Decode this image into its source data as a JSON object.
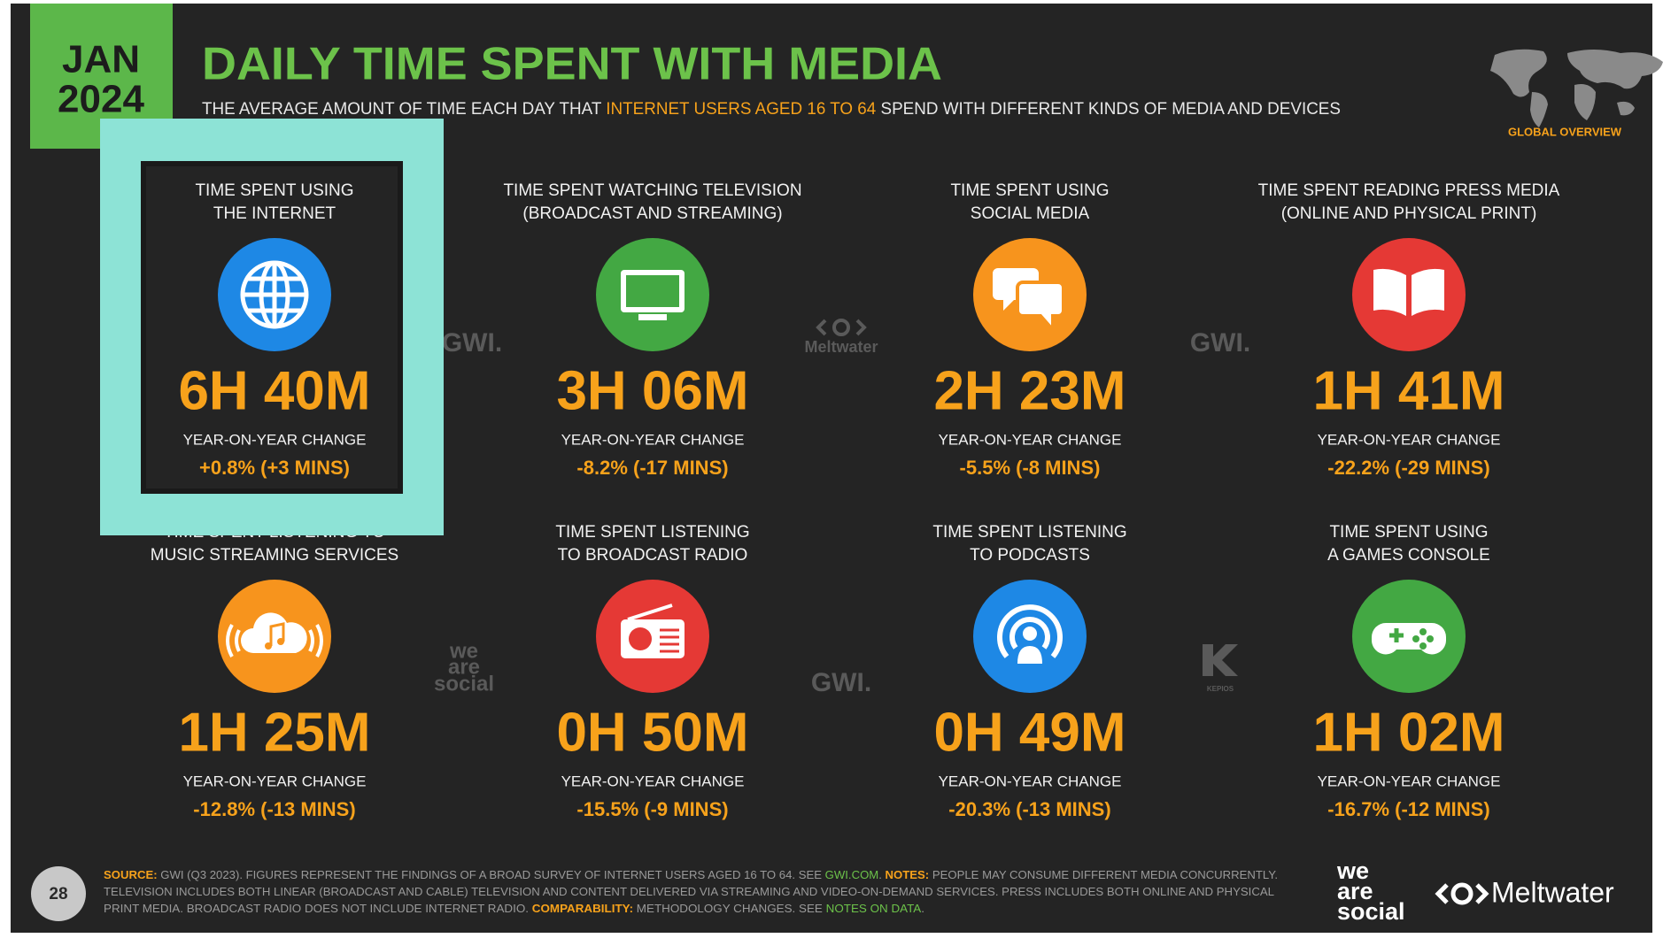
{
  "header": {
    "month": "JAN",
    "year": "2024",
    "title": "DAILY TIME SPENT WITH MEDIA",
    "subtitle": [
      "THE AVERAGE AMOUNT OF TIME EACH DAY THAT ",
      "INTERNET USERS AGED 16 TO 64",
      " SPEND WITH DIFFERENT KINDS OF MEDIA AND DEVICES"
    ],
    "badge": "GLOBAL OVERVIEW"
  },
  "cards": [
    {
      "label": [
        "TIME SPENT USING",
        "THE INTERNET"
      ],
      "value": "6H 40M",
      "change_label": "YEAR-ON-YEAR CHANGE",
      "change": "+0.8% (+3 MINS)",
      "color": "#1e88e5"
    },
    {
      "label": [
        "TIME SPENT WATCHING TELEVISION",
        "(BROADCAST AND STREAMING)"
      ],
      "value": "3H 06M",
      "change_label": "YEAR-ON-YEAR CHANGE",
      "change": "-8.2% (-17 MINS)",
      "color": "#43a843"
    },
    {
      "label": [
        "TIME SPENT USING",
        "SOCIAL MEDIA"
      ],
      "value": "2H 23M",
      "change_label": "YEAR-ON-YEAR CHANGE",
      "change": "-5.5% (-8 MINS)",
      "color": "#f7941d"
    },
    {
      "label": [
        "TIME SPENT READING PRESS MEDIA",
        "(ONLINE AND PHYSICAL PRINT)"
      ],
      "value": "1H 41M",
      "change_label": "YEAR-ON-YEAR CHANGE",
      "change": "-22.2% (-29 MINS)",
      "color": "#e53935"
    },
    {
      "label": [
        "TIME SPENT LISTENING TO",
        "MUSIC STREAMING SERVICES"
      ],
      "value": "1H 25M",
      "change_label": "YEAR-ON-YEAR CHANGE",
      "change": "-12.8% (-13 MINS)",
      "color": "#f7941d"
    },
    {
      "label": [
        "TIME SPENT LISTENING",
        "TO BROADCAST RADIO"
      ],
      "value": "0H 50M",
      "change_label": "YEAR-ON-YEAR CHANGE",
      "change": "-15.5% (-9 MINS)",
      "color": "#e53935"
    },
    {
      "label": [
        "TIME SPENT LISTENING",
        "TO PODCASTS"
      ],
      "value": "0H 49M",
      "change_label": "YEAR-ON-YEAR CHANGE",
      "change": "-20.3% (-13 MINS)",
      "color": "#1e88e5"
    },
    {
      "label": [
        "TIME SPENT USING",
        "A GAMES CONSOLE"
      ],
      "value": "1H 02M",
      "change_label": "YEAR-ON-YEAR CHANGE",
      "change": "-16.7% (-12 MINS)",
      "color": "#43a843"
    }
  ],
  "watermarks": [
    "GWI.",
    "Meltwater",
    "GWI.",
    "we",
    "are",
    "social",
    "GWI.",
    "KEPIOS"
  ],
  "footer": {
    "page": "28",
    "lines": [
      [
        {
          "text": "SOURCE:",
          "color": "#f7a21b"
        },
        {
          "text": " GWI (Q3 2023). FIGURES REPRESENT THE FINDINGS OF A BROAD SURVEY OF INTERNET USERS AGED 16 TO 64. SEE ",
          "color": "#9a9a9a"
        },
        {
          "text": "GWI.COM",
          "color": "#6cc24a"
        },
        {
          "text": ". ",
          "color": "#9a9a9a"
        },
        {
          "text": "NOTES:",
          "color": "#f7a21b"
        },
        {
          "text": " PEOPLE MAY CONSUME DIFFERENT MEDIA CONCURRENTLY.",
          "color": "#9a9a9a"
        }
      ],
      [
        {
          "text": "TELEVISION INCLUDES BOTH LINEAR (BROADCAST AND CABLE) TELEVISION AND CONTENT DELIVERED VIA STREAMING AND VIDEO-ON-DEMAND SERVICES. PRESS INCLUDES BOTH ONLINE AND PHYSICAL",
          "color": "#9a9a9a"
        }
      ],
      [
        {
          "text": "PRINT MEDIA. BROADCAST RADIO DOES NOT INCLUDE INTERNET RADIO. ",
          "color": "#9a9a9a"
        },
        {
          "text": "COMPARABILITY:",
          "color": "#f7a21b"
        },
        {
          "text": " METHODOLOGY CHANGES. SEE ",
          "color": "#9a9a9a"
        },
        {
          "text": "NOTES ON DATA",
          "color": "#6cc24a"
        },
        {
          "text": ".",
          "color": "#9a9a9a"
        }
      ]
    ],
    "logos": {
      "we_are_social": [
        "we",
        "are",
        "social"
      ],
      "meltwater": "Meltwater"
    }
  }
}
